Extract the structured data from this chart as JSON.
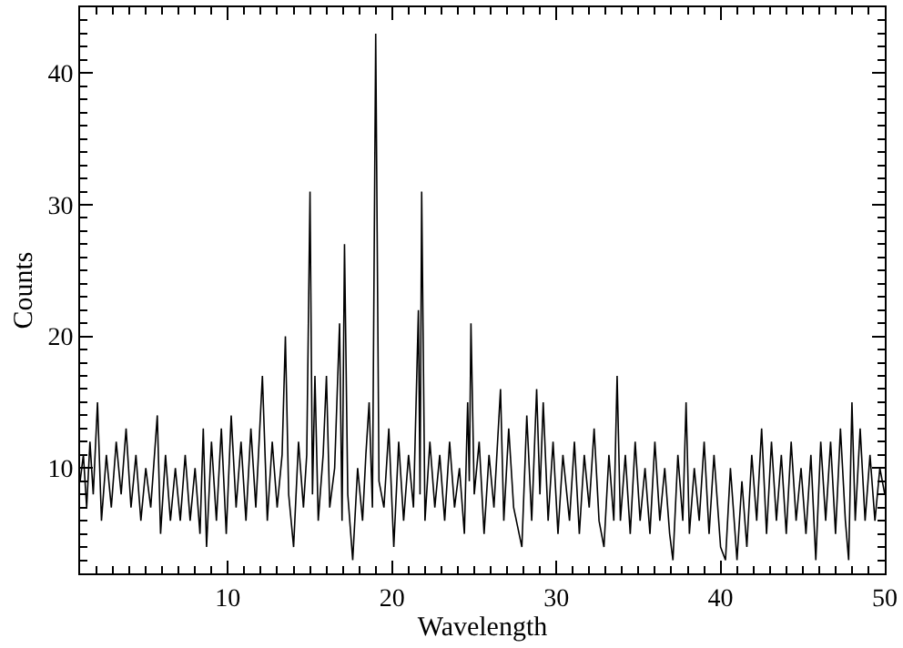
{
  "chart_data": {
    "type": "line",
    "xlabel": "Wavelength",
    "ylabel": "Counts",
    "xlim": [
      1,
      50
    ],
    "ylim": [
      2,
      45
    ],
    "xticks": [
      10,
      20,
      30,
      40,
      50
    ],
    "yticks": [
      10,
      20,
      30,
      40
    ],
    "marker": "none",
    "line_style": "solid",
    "series": [
      {
        "color": "#000000",
        "x": [
          1.0,
          1.2,
          1.4,
          1.6,
          1.8,
          2.06,
          2.3,
          2.6,
          2.9,
          3.2,
          3.5,
          3.8,
          4.1,
          4.4,
          4.7,
          5.0,
          5.3,
          5.7,
          5.9,
          6.2,
          6.5,
          6.8,
          7.1,
          7.4,
          7.7,
          8.0,
          8.3,
          8.5,
          8.7,
          9.0,
          9.3,
          9.6,
          9.9,
          10.2,
          10.5,
          10.8,
          11.1,
          11.4,
          11.7,
          12.1,
          12.4,
          12.7,
          13.0,
          13.3,
          13.5,
          13.7,
          14.0,
          14.3,
          14.6,
          14.8,
          15.0,
          15.15,
          15.3,
          15.5,
          15.8,
          16.0,
          16.2,
          16.5,
          16.8,
          16.95,
          17.1,
          17.3,
          17.6,
          17.9,
          18.2,
          18.4,
          18.6,
          18.8,
          19.0,
          19.2,
          19.5,
          19.8,
          20.1,
          20.4,
          20.7,
          21.0,
          21.3,
          21.6,
          21.7,
          21.8,
          22.0,
          22.3,
          22.6,
          22.9,
          23.2,
          23.5,
          23.8,
          24.1,
          24.4,
          24.6,
          24.7,
          24.8,
          25.0,
          25.3,
          25.6,
          25.9,
          26.2,
          26.6,
          26.8,
          27.1,
          27.4,
          27.9,
          28.2,
          28.5,
          28.8,
          29.0,
          29.2,
          29.5,
          29.8,
          30.1,
          30.4,
          30.8,
          31.1,
          31.4,
          31.7,
          32.0,
          32.3,
          32.6,
          32.9,
          33.2,
          33.5,
          33.7,
          33.9,
          34.2,
          34.5,
          34.8,
          35.1,
          35.4,
          35.7,
          36.0,
          36.3,
          36.6,
          36.9,
          37.1,
          37.4,
          37.7,
          37.9,
          38.1,
          38.4,
          38.7,
          39.0,
          39.3,
          39.6,
          40.0,
          40.3,
          40.6,
          41.0,
          41.3,
          41.6,
          41.9,
          42.2,
          42.5,
          42.8,
          43.1,
          43.4,
          43.7,
          44.0,
          44.3,
          44.6,
          44.9,
          45.2,
          45.5,
          45.8,
          46.1,
          46.4,
          46.7,
          47.0,
          47.3,
          47.6,
          47.8,
          48.0,
          48.2,
          48.5,
          48.8,
          49.1,
          49.4,
          49.7,
          50.0
        ],
        "values": [
          9,
          11,
          7,
          12,
          8,
          15,
          6,
          11,
          7,
          12,
          8,
          13,
          7,
          11,
          6,
          10,
          7,
          14,
          5,
          11,
          6,
          10,
          6,
          11,
          6,
          10,
          5,
          13,
          4,
          12,
          6,
          13,
          5,
          14,
          7,
          12,
          6,
          13,
          7,
          17,
          6,
          12,
          7,
          11,
          20,
          8,
          4,
          12,
          7,
          11,
          31,
          8,
          17,
          6,
          11,
          17,
          7,
          10,
          21,
          6,
          27,
          8,
          3,
          10,
          6,
          11,
          15,
          7,
          43,
          9,
          7,
          13,
          4,
          12,
          6,
          11,
          7,
          22,
          8,
          31,
          6,
          12,
          7,
          11,
          6,
          12,
          7,
          10,
          5,
          15,
          9,
          21,
          8,
          12,
          5,
          11,
          7,
          16,
          6,
          13,
          7,
          4,
          14,
          6,
          16,
          8,
          15,
          6,
          12,
          5,
          11,
          6,
          12,
          5,
          11,
          7,
          13,
          6,
          4,
          11,
          6,
          17,
          6,
          11,
          5,
          12,
          6,
          10,
          5,
          12,
          6,
          10,
          5,
          3,
          11,
          6,
          15,
          5,
          10,
          6,
          12,
          5,
          11,
          4,
          3,
          10,
          3,
          9,
          4,
          11,
          6,
          13,
          5,
          12,
          6,
          11,
          5,
          12,
          6,
          10,
          5,
          11,
          3,
          12,
          6,
          12,
          5,
          13,
          6,
          3,
          15,
          6,
          13,
          6,
          11,
          6,
          10,
          8
        ]
      }
    ]
  }
}
